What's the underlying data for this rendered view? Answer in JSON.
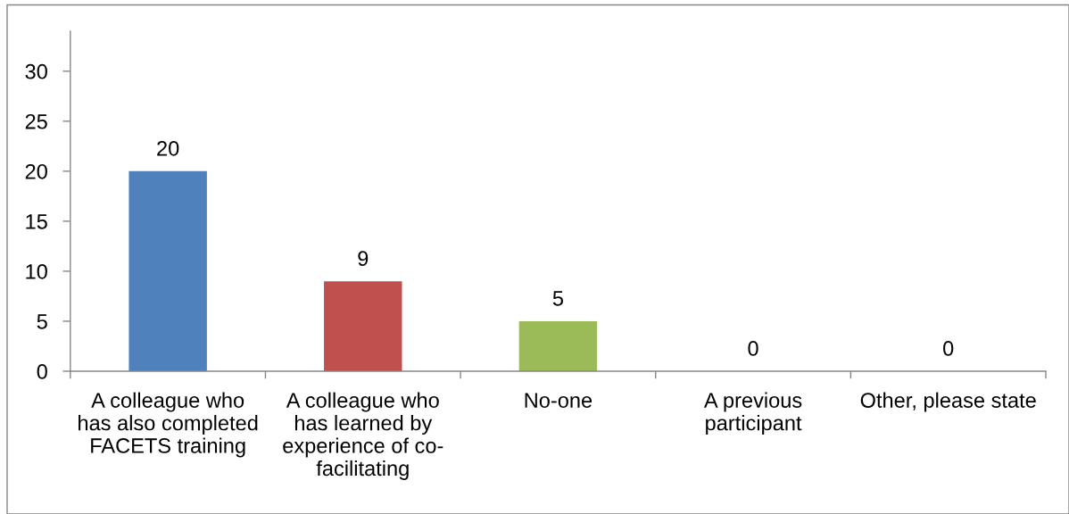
{
  "chart_data": {
    "type": "bar",
    "categories": [
      "A colleague who has also completed FACETS training",
      "A colleague who has learned by experience of co-facilitating",
      "No-one",
      "A previous participant",
      "Other, please state"
    ],
    "values": [
      20,
      9,
      5,
      0,
      0
    ],
    "colors": [
      "#4f81bd",
      "#c0504d",
      "#9bbb59",
      "#8064a2",
      "#4bacc6"
    ],
    "ylim": [
      0,
      34
    ],
    "yticks": [
      0,
      5,
      10,
      15,
      20,
      25,
      30
    ],
    "data_labels": true,
    "grid": false
  }
}
